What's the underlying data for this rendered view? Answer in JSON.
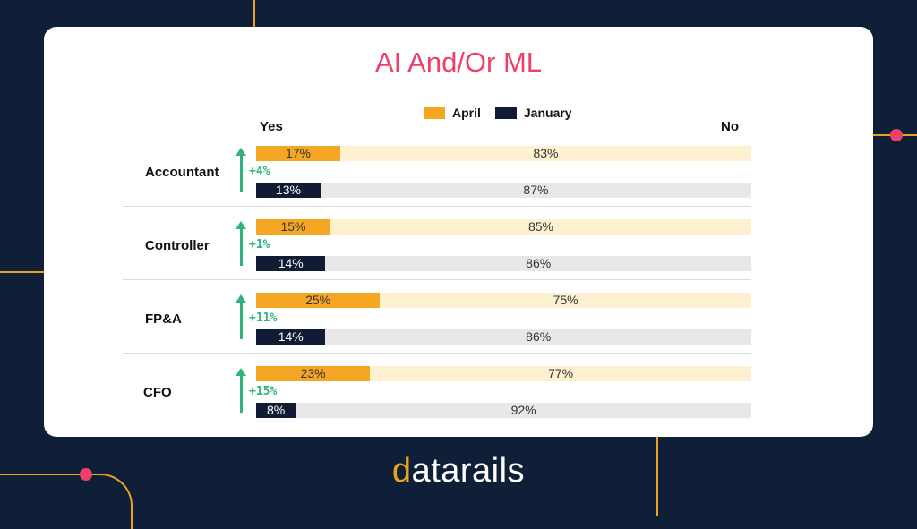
{
  "chart_data": {
    "type": "bar",
    "title": "AI And/Or ML",
    "legend": [
      "April",
      "January"
    ],
    "column_labels": {
      "left": "Yes",
      "right": "No"
    },
    "colors": {
      "april": "#f5a623",
      "april_rest": "#fdf1d2",
      "january": "#0f1c33",
      "january_rest": "#e8e8ea",
      "change": "#2fb57c",
      "title": "#ef3f6b"
    },
    "groups": [
      {
        "role": "Accountant",
        "april_yes": 17,
        "april_no": 83,
        "jan_yes": 13,
        "jan_no": 87,
        "change": "+4%"
      },
      {
        "role": "Controller",
        "april_yes": 15,
        "april_no": 85,
        "jan_yes": 14,
        "jan_no": 86,
        "change": "+1%"
      },
      {
        "role": "FP&A",
        "april_yes": 25,
        "april_no": 75,
        "jan_yes": 14,
        "jan_no": 86,
        "change": "+11%"
      },
      {
        "role": "CFO",
        "april_yes": 23,
        "april_no": 77,
        "jan_yes": 8,
        "jan_no": 92,
        "change": "+15%"
      }
    ]
  },
  "brand": {
    "logo_main": "datarails"
  }
}
